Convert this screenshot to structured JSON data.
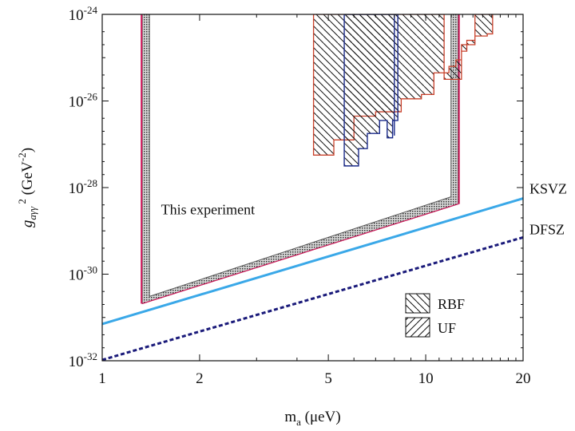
{
  "chart_data": {
    "type": "line",
    "title": "",
    "xlabel": {
      "main": "m",
      "sub": "a",
      "rest": " (μeV)"
    },
    "ylabel": {
      "main": "g",
      "sub": "aγγ",
      "sup": "2",
      "rest": " (GeV",
      "unit_exp": "-2",
      "close": ")"
    },
    "x_scale": "log",
    "y_scale": "log",
    "xlim": [
      1,
      20
    ],
    "ylim_log10": [
      -32,
      -24
    ],
    "x_ticks": [
      {
        "value": 1,
        "label": "1"
      },
      {
        "value": 2,
        "label": "2"
      },
      {
        "value": 5,
        "label": "5"
      },
      {
        "value": 10,
        "label": "10"
      },
      {
        "value": 20,
        "label": "20"
      }
    ],
    "y_ticks": [
      {
        "exp": -32,
        "base": "10",
        "sup": "-32"
      },
      {
        "exp": -30,
        "base": "10",
        "sup": "-30"
      },
      {
        "exp": -28,
        "base": "10",
        "sup": "-28"
      },
      {
        "exp": -26,
        "base": "10",
        "sup": "-26"
      },
      {
        "exp": -24,
        "base": "10",
        "sup": "-24"
      }
    ],
    "series": [
      {
        "name": "KSVZ",
        "style": "solid",
        "color": "#3aa8e8",
        "x": [
          1,
          20
        ],
        "log10_y": [
          -31.15,
          -28.25
        ]
      },
      {
        "name": "DFSZ",
        "style": "dashed",
        "color": "#1a1a7a",
        "x": [
          1,
          20
        ],
        "log10_y": [
          -31.98,
          -29.15
        ]
      }
    ],
    "excluded_region": {
      "label": "This experiment",
      "x_left": 1.33,
      "x_right": 12.6,
      "log10_y_top": -24,
      "bottom_x": [
        1.33,
        12.6
      ],
      "bottom_log10_y": [
        -30.68,
        -28.38
      ]
    },
    "legend": [
      {
        "label": "RBF",
        "pattern": "hatch-back"
      },
      {
        "label": "UF",
        "pattern": "hatch-forward"
      }
    ],
    "rbf_region": {
      "x": [
        4.5,
        4.5,
        5.2,
        5.2,
        6.0,
        6.0,
        7.0,
        7.0,
        8.4,
        8.4,
        9.7,
        9.7,
        10.6,
        10.6,
        11.8,
        11.8,
        12.4,
        12.4,
        12.9,
        12.9,
        13.4,
        13.4,
        14.2,
        14.2,
        15.5,
        15.5,
        16.1,
        16.1,
        14.2,
        14.2,
        12.9,
        12.9,
        11.4,
        11.4
      ],
      "log10_y": [
        -24,
        -27.25,
        -27.25,
        -26.9,
        -26.9,
        -26.35,
        -26.35,
        -26.25,
        -26.25,
        -25.95,
        -25.95,
        -25.85,
        -25.85,
        -25.35,
        -25.35,
        -25.2,
        -25.2,
        -25.05,
        -25.05,
        -24.85,
        -24.85,
        -24.6,
        -24.6,
        -24.5,
        -24.5,
        -24.45,
        -24.45,
        -24,
        -24,
        -24.7,
        -24.7,
        -25.5,
        -25.5,
        -24
      ]
    },
    "uf_region": {
      "x": [
        5.6,
        5.6,
        6.2,
        6.2,
        6.6,
        6.6,
        7.2,
        7.2,
        7.6,
        7.6,
        7.9,
        7.9,
        8.2,
        8.2
      ],
      "log10_y": [
        -24,
        -27.5,
        -27.5,
        -27.1,
        -27.1,
        -26.75,
        -26.75,
        -26.45,
        -26.45,
        -26.85,
        -26.85,
        -26.45,
        -26.45,
        -24
      ]
    },
    "uf_line_x": 8.0
  }
}
